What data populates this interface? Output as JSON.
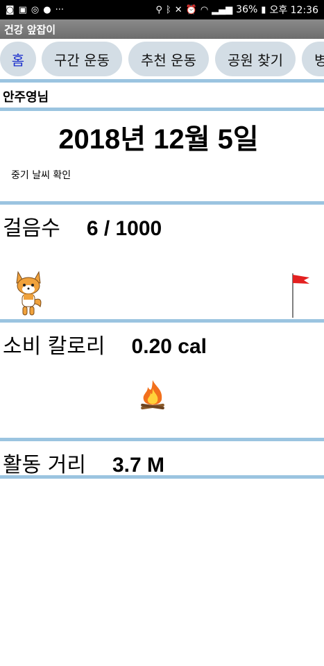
{
  "status_bar": {
    "left_icons": [
      "whatsapp-like-icon",
      "gallery-icon",
      "clock-app-icon",
      "talk-icon",
      "more-dots-icon"
    ],
    "more": "···",
    "battery": "36%",
    "time": "오후 12:36"
  },
  "app": {
    "title": "건강 앞잡이"
  },
  "tabs": [
    {
      "label": "홈",
      "active": true
    },
    {
      "label": "구간 운동",
      "active": false
    },
    {
      "label": "추천 운동",
      "active": false
    },
    {
      "label": "공원 찾기",
      "active": false
    },
    {
      "label": "병",
      "active": false
    }
  ],
  "user": {
    "name": "안주영님"
  },
  "date": {
    "text": "2018년 12월 5일"
  },
  "weather": {
    "link_label": "중기 날씨 확인"
  },
  "steps": {
    "label": "걸음수",
    "value": "6 / 1000",
    "progress": 0.006
  },
  "calories": {
    "label": "소비 칼로리",
    "value": "0.20 cal"
  },
  "distance": {
    "label": "활동 거리",
    "value": "3.7 M"
  },
  "colors": {
    "divider": "#9bc4e0",
    "tab_bg": "#d3dde5",
    "tab_active_text": "#1a2ecc",
    "title_bar": "#7a7a7a",
    "flag": "#e32020",
    "fox": "#f0a23c"
  }
}
